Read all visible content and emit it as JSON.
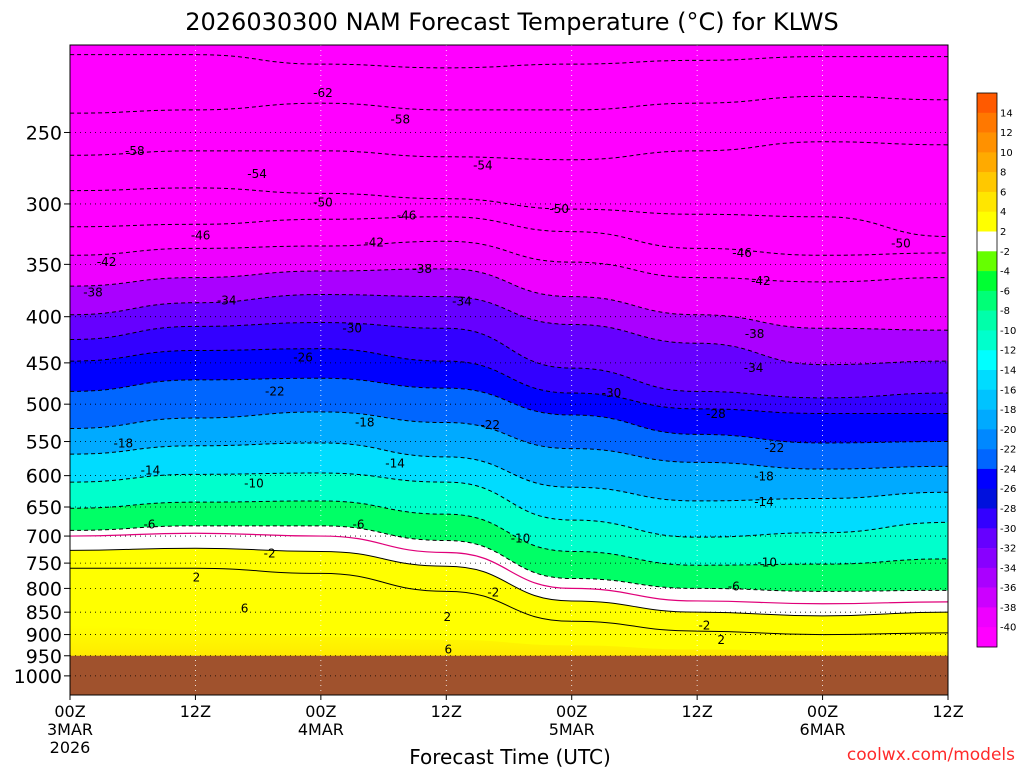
{
  "chart_data": {
    "type": "heatmap",
    "title": "2026030300 NAM Forecast Temperature (°C) for KLWS",
    "xlabel": "Forecast Time (UTC)",
    "ylabel": "",
    "credit": "coolwx.com/models",
    "x_hours": [
      0,
      84
    ],
    "x_ticks": [
      {
        "hour": 0,
        "label": "00Z",
        "date": "3MAR",
        "year": "2026"
      },
      {
        "hour": 12,
        "label": "12Z",
        "date": "",
        "year": ""
      },
      {
        "hour": 24,
        "label": "00Z",
        "date": "4MAR",
        "year": ""
      },
      {
        "hour": 36,
        "label": "12Z",
        "date": "",
        "year": ""
      },
      {
        "hour": 48,
        "label": "00Z",
        "date": "5MAR",
        "year": ""
      },
      {
        "hour": 60,
        "label": "12Z",
        "date": "",
        "year": ""
      },
      {
        "hour": 72,
        "label": "00Z",
        "date": "6MAR",
        "year": ""
      },
      {
        "hour": 84,
        "label": "12Z",
        "date": "",
        "year": ""
      }
    ],
    "y_ticks": [
      "250",
      "300",
      "350",
      "400",
      "450",
      "500",
      "550",
      "600",
      "650",
      "700",
      "750",
      "800",
      "850",
      "900",
      "950",
      "1000"
    ],
    "y_pressure_range_hpa": [
      200,
      1050
    ],
    "surface_pressure_hpa": 950,
    "colorbar": {
      "labels": [
        "14",
        "12",
        "10",
        "8",
        "6",
        "4",
        "2",
        "-2",
        "-4",
        "-6",
        "-8",
        "-10",
        "-12",
        "-14",
        "-16",
        "-18",
        "-20",
        "-22",
        "-24",
        "-26",
        "-28",
        "-30",
        "-32",
        "-34",
        "-36",
        "-38",
        "-40"
      ],
      "colors": [
        "#ff5a00",
        "#ff7800",
        "#ff9100",
        "#ffaa00",
        "#ffc800",
        "#ffe600",
        "#ffff00",
        "#ffffff",
        "#66ff00",
        "#00ff33",
        "#00ff77",
        "#00ffaa",
        "#00ffcc",
        "#00ffff",
        "#00dcff",
        "#00c3ff",
        "#00aaff",
        "#0088ff",
        "#0066ff",
        "#0000ff",
        "#0011dd",
        "#3300ff",
        "#6600ff",
        "#8800ff",
        "#aa00ff",
        "#cc00ff",
        "#ee00ff",
        "#ff00ff"
      ]
    },
    "contour_labels": [
      {
        "text": "-62",
        "hour": 24.2,
        "p": 226
      },
      {
        "text": "-58",
        "hour": 6.2,
        "p": 262
      },
      {
        "text": "-58",
        "hour": 31.6,
        "p": 242
      },
      {
        "text": "-54",
        "hour": 17.9,
        "p": 278
      },
      {
        "text": "-54",
        "hour": 39.5,
        "p": 272
      },
      {
        "text": "-50",
        "hour": 24.2,
        "p": 299
      },
      {
        "text": "-50",
        "hour": 46.8,
        "p": 304
      },
      {
        "text": "-50",
        "hour": 79.5,
        "p": 332
      },
      {
        "text": "-46",
        "hour": 12.5,
        "p": 325
      },
      {
        "text": "-46",
        "hour": 32.2,
        "p": 309
      },
      {
        "text": "-46",
        "hour": 64.3,
        "p": 340
      },
      {
        "text": "-42",
        "hour": 3.5,
        "p": 348
      },
      {
        "text": "-42",
        "hour": 29.1,
        "p": 331
      },
      {
        "text": "-42",
        "hour": 66.1,
        "p": 365
      },
      {
        "text": "-38",
        "hour": 2.2,
        "p": 376
      },
      {
        "text": "-38",
        "hour": 33.7,
        "p": 354
      },
      {
        "text": "-38",
        "hour": 65.5,
        "p": 418
      },
      {
        "text": "-34",
        "hour": 15.0,
        "p": 384
      },
      {
        "text": "-34",
        "hour": 37.5,
        "p": 385
      },
      {
        "text": "-34",
        "hour": 65.4,
        "p": 456
      },
      {
        "text": "-30",
        "hour": 27.0,
        "p": 412
      },
      {
        "text": "-30",
        "hour": 51.8,
        "p": 486
      },
      {
        "text": "-26",
        "hour": 22.3,
        "p": 444
      },
      {
        "text": "-28",
        "hour": 61.8,
        "p": 513
      },
      {
        "text": "-22",
        "hour": 19.6,
        "p": 484
      },
      {
        "text": "-22",
        "hour": 40.2,
        "p": 527
      },
      {
        "text": "-22",
        "hour": 67.4,
        "p": 559
      },
      {
        "text": "-18",
        "hour": 5.1,
        "p": 553
      },
      {
        "text": "-18",
        "hour": 28.2,
        "p": 524
      },
      {
        "text": "-18",
        "hour": 66.4,
        "p": 601
      },
      {
        "text": "-14",
        "hour": 7.7,
        "p": 592
      },
      {
        "text": "-14",
        "hour": 31.1,
        "p": 582
      },
      {
        "text": "-14",
        "hour": 66.4,
        "p": 642
      },
      {
        "text": "-10",
        "hour": 17.6,
        "p": 612
      },
      {
        "text": "-10",
        "hour": 43.1,
        "p": 704
      },
      {
        "text": "-10",
        "hour": 66.7,
        "p": 749
      },
      {
        "text": "-6",
        "hour": 7.6,
        "p": 680
      },
      {
        "text": "-6",
        "hour": 27.6,
        "p": 680
      },
      {
        "text": "-6",
        "hour": 63.5,
        "p": 796
      },
      {
        "text": "-2",
        "hour": 19.1,
        "p": 732
      },
      {
        "text": "-2",
        "hour": 40.5,
        "p": 808
      },
      {
        "text": "-2",
        "hour": 60.7,
        "p": 879
      },
      {
        "text": "2",
        "hour": 12.1,
        "p": 778
      },
      {
        "text": "2",
        "hour": 36.1,
        "p": 861
      },
      {
        "text": "2",
        "hour": 62.3,
        "p": 912
      },
      {
        "text": "6",
        "hour": 16.7,
        "p": 842
      },
      {
        "text": "6",
        "hour": 36.2,
        "p": 935
      }
    ]
  }
}
